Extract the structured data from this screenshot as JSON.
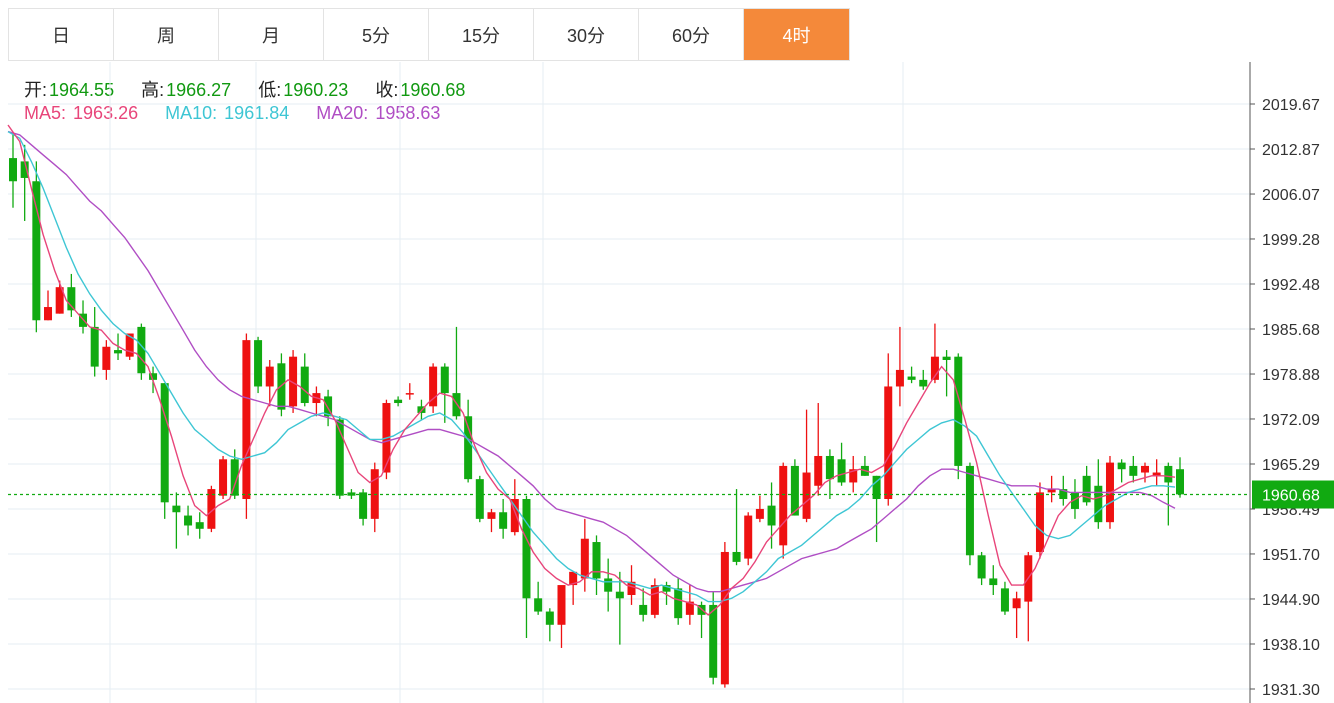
{
  "tabs": [
    {
      "label": "日",
      "active": false
    },
    {
      "label": "周",
      "active": false
    },
    {
      "label": "月",
      "active": false
    },
    {
      "label": "5分",
      "active": false
    },
    {
      "label": "15分",
      "active": false
    },
    {
      "label": "30分",
      "active": false
    },
    {
      "label": "60分",
      "active": false
    },
    {
      "label": "4时",
      "active": true
    }
  ],
  "info": {
    "open_label": "开:",
    "open_value": "1964.55",
    "high_label": "高:",
    "high_value": "1966.27",
    "low_label": "低:",
    "low_value": "1960.23",
    "close_label": "收:",
    "close_value": "1960.68",
    "ma5_label": "MA5:",
    "ma5_value": "1963.26",
    "ma10_label": "MA10:",
    "ma10_value": "1961.84",
    "ma20_label": "MA20:",
    "ma20_value": "1958.63"
  },
  "colors": {
    "up": "#ee1111",
    "down": "#11aa11",
    "ma5": "#e8457a",
    "ma10": "#3ec6d4",
    "ma20": "#b04ec4",
    "active_tab": "#f4893a",
    "price_line": "#11aa11",
    "label_green": "#119911"
  },
  "chart_data": {
    "type": "candlestick",
    "y_ticks": [
      "2019.67",
      "2012.87",
      "2006.07",
      "1999.28",
      "1992.48",
      "1985.68",
      "1978.88",
      "1972.09",
      "1965.29",
      "1958.49",
      "1951.70",
      "1944.90",
      "1938.10",
      "1931.30"
    ],
    "ylim": [
      1929.3,
      2023.0
    ],
    "current_price": "1960.68",
    "grid": true,
    "candles": [
      [
        2011.5,
        2015.3,
        2004.0,
        2008.0
      ],
      [
        2011.0,
        2013.5,
        2002.0,
        2008.5
      ],
      [
        2008.0,
        2011.0,
        1985.2,
        1987.0
      ],
      [
        1987.0,
        1991.5,
        1987.0,
        1989.0
      ],
      [
        1988.0,
        1993.0,
        1988.0,
        1992.0
      ],
      [
        1992.0,
        1994.0,
        1987.5,
        1988.5
      ],
      [
        1988.0,
        1990.0,
        1985.0,
        1986.0
      ],
      [
        1986.0,
        1989.0,
        1978.5,
        1980.0
      ],
      [
        1979.5,
        1984.0,
        1978.0,
        1983.0
      ],
      [
        1982.5,
        1985.0,
        1981.0,
        1982.0
      ],
      [
        1981.5,
        1985.0,
        1981.0,
        1985.0
      ],
      [
        1986.0,
        1986.5,
        1978.0,
        1979.0
      ],
      [
        1979.0,
        1980.0,
        1976.0,
        1978.0
      ],
      [
        1977.5,
        1977.5,
        1957.0,
        1959.5
      ],
      [
        1959.0,
        1961.0,
        1952.5,
        1958.0
      ],
      [
        1957.5,
        1959.0,
        1954.5,
        1956.0
      ],
      [
        1956.5,
        1958.0,
        1954.0,
        1955.5
      ],
      [
        1955.5,
        1962.0,
        1955.0,
        1961.5
      ],
      [
        1960.5,
        1966.5,
        1960.0,
        1966.0
      ],
      [
        1966.0,
        1967.5,
        1960.0,
        1960.5
      ],
      [
        1960.0,
        1985.0,
        1957.0,
        1984.0
      ],
      [
        1984.0,
        1984.5,
        1976.0,
        1977.0
      ],
      [
        1977.0,
        1981.0,
        1974.0,
        1980.0
      ],
      [
        1980.5,
        1982.0,
        1972.5,
        1973.5
      ],
      [
        1974.0,
        1982.5,
        1973.0,
        1981.5
      ],
      [
        1980.0,
        1982.0,
        1974.0,
        1974.5
      ],
      [
        1974.5,
        1977.0,
        1972.5,
        1976.0
      ],
      [
        1975.5,
        1976.5,
        1971.0,
        1972.5
      ],
      [
        1972.0,
        1972.5,
        1960.0,
        1960.5
      ],
      [
        1961.0,
        1961.5,
        1960.0,
        1960.5
      ],
      [
        1961.0,
        1961.5,
        1956.0,
        1957.0
      ],
      [
        1957.0,
        1965.5,
        1955.0,
        1964.5
      ],
      [
        1964.0,
        1975.0,
        1963.0,
        1974.5
      ],
      [
        1975.0,
        1975.5,
        1974.0,
        1974.5
      ],
      [
        1976.0,
        1977.5,
        1975.0,
        1976.0
      ],
      [
        1974.0,
        1975.0,
        1972.0,
        1973.0
      ],
      [
        1974.0,
        1980.5,
        1973.0,
        1980.0
      ],
      [
        1980.0,
        1980.5,
        1971.5,
        1976.0
      ],
      [
        1976.0,
        1986.0,
        1972.0,
        1972.5
      ],
      [
        1972.5,
        1975.0,
        1962.5,
        1963.0
      ],
      [
        1963.0,
        1963.5,
        1956.5,
        1957.0
      ],
      [
        1957.0,
        1958.5,
        1955.0,
        1958.0
      ],
      [
        1958.0,
        1960.0,
        1954.0,
        1955.5
      ],
      [
        1955.0,
        1963.0,
        1954.5,
        1960.0
      ],
      [
        1960.0,
        1960.5,
        1939.0,
        1945.0
      ],
      [
        1945.0,
        1947.5,
        1942.5,
        1943.0
      ],
      [
        1943.0,
        1943.5,
        1938.5,
        1941.0
      ],
      [
        1941.0,
        1946.5,
        1937.5,
        1947.0
      ],
      [
        1947.0,
        1949.0,
        1944.0,
        1949.0
      ],
      [
        1948.0,
        1957.0,
        1946.0,
        1954.0
      ],
      [
        1953.5,
        1954.5,
        1945.5,
        1948.0
      ],
      [
        1948.0,
        1951.0,
        1943.0,
        1946.0
      ],
      [
        1946.0,
        1949.0,
        1938.0,
        1945.0
      ],
      [
        1945.5,
        1950.0,
        1944.0,
        1947.5
      ],
      [
        1944.0,
        1946.5,
        1941.5,
        1942.5
      ],
      [
        1942.5,
        1948.0,
        1942.0,
        1947.0
      ],
      [
        1947.0,
        1947.5,
        1944.0,
        1946.0
      ],
      [
        1946.5,
        1948.0,
        1941.0,
        1942.0
      ],
      [
        1942.5,
        1947.0,
        1941.0,
        1944.5
      ],
      [
        1944.0,
        1944.5,
        1939.0,
        1942.5
      ],
      [
        1944.0,
        1946.0,
        1932.0,
        1933.0
      ],
      [
        1932.0,
        1953.5,
        1931.5,
        1952.0
      ],
      [
        1952.0,
        1961.5,
        1950.0,
        1950.5
      ],
      [
        1951.0,
        1958.0,
        1950.0,
        1957.5
      ],
      [
        1957.0,
        1960.5,
        1956.5,
        1958.5
      ],
      [
        1959.0,
        1962.5,
        1952.5,
        1956.0
      ],
      [
        1953.0,
        1965.5,
        1951.0,
        1965.0
      ],
      [
        1965.0,
        1966.0,
        1957.5,
        1957.5
      ],
      [
        1957.0,
        1973.5,
        1956.5,
        1964.0
      ],
      [
        1962.0,
        1974.5,
        1960.5,
        1966.5
      ],
      [
        1966.5,
        1967.5,
        1960.0,
        1963.0
      ],
      [
        1966.0,
        1968.5,
        1962.0,
        1962.5
      ],
      [
        1962.5,
        1966.5,
        1961.0,
        1964.5
      ],
      [
        1965.0,
        1966.5,
        1963.5,
        1963.5
      ],
      [
        1963.5,
        1963.5,
        1953.5,
        1960.0
      ],
      [
        1960.0,
        1982.0,
        1959.0,
        1977.0
      ],
      [
        1977.0,
        1986.0,
        1974.0,
        1979.5
      ],
      [
        1978.5,
        1980.0,
        1977.5,
        1978.0
      ],
      [
        1978.0,
        1979.5,
        1976.5,
        1977.0
      ],
      [
        1978.0,
        1986.5,
        1977.5,
        1981.5
      ],
      [
        1981.5,
        1982.5,
        1975.5,
        1981.0
      ],
      [
        1981.5,
        1982.0,
        1963.0,
        1965.0
      ],
      [
        1965.0,
        1965.5,
        1950.0,
        1951.5
      ],
      [
        1951.5,
        1952.0,
        1947.0,
        1948.0
      ],
      [
        1948.0,
        1950.0,
        1945.5,
        1947.0
      ],
      [
        1946.5,
        1947.5,
        1942.5,
        1943.0
      ],
      [
        1943.5,
        1946.0,
        1939.0,
        1945.0
      ],
      [
        1944.5,
        1952.0,
        1938.5,
        1951.5
      ],
      [
        1952.0,
        1962.5,
        1951.0,
        1961.0
      ],
      [
        1961.0,
        1963.5,
        1959.5,
        1961.5
      ],
      [
        1961.5,
        1963.5,
        1959.0,
        1960.0
      ],
      [
        1961.0,
        1963.0,
        1957.0,
        1958.5
      ],
      [
        1963.5,
        1965.0,
        1959.0,
        1959.5
      ],
      [
        1962.0,
        1966.0,
        1955.5,
        1956.5
      ],
      [
        1956.5,
        1966.5,
        1955.5,
        1965.5
      ],
      [
        1965.5,
        1966.0,
        1962.5,
        1964.5
      ],
      [
        1965.0,
        1966.5,
        1962.5,
        1963.5
      ],
      [
        1964.0,
        1965.5,
        1962.5,
        1965.0
      ],
      [
        1963.5,
        1966.0,
        1962.0,
        1964.0
      ],
      [
        1965.0,
        1965.5,
        1956.0,
        1962.5
      ],
      [
        1964.5,
        1966.3,
        1960.2,
        1960.7
      ]
    ],
    "ma5": [
      2016.5,
      2014.0,
      2007.0,
      2000.0,
      1994.5,
      1990.0,
      1988.0,
      1986.0,
      1985.5,
      1983.5,
      1982.5,
      1982.0,
      1980.0,
      1975.0,
      1969.5,
      1963.5,
      1959.0,
      1957.5,
      1959.0,
      1960.0,
      1965.0,
      1969.0,
      1973.0,
      1976.5,
      1978.0,
      1977.0,
      1975.5,
      1975.0,
      1972.0,
      1968.0,
      1964.0,
      1962.5,
      1963.5,
      1967.5,
      1970.5,
      1972.5,
      1974.5,
      1976.0,
      1975.5,
      1973.0,
      1968.0,
      1964.0,
      1961.5,
      1960.0,
      1955.5,
      1952.0,
      1949.5,
      1948.0,
      1947.0,
      1947.5,
      1949.0,
      1949.0,
      1948.5,
      1947.0,
      1946.5,
      1945.5,
      1946.0,
      1945.0,
      1944.5,
      1944.0,
      1942.5,
      1944.0,
      1946.5,
      1948.0,
      1950.5,
      1953.5,
      1955.5,
      1957.5,
      1959.0,
      1960.5,
      1962.5,
      1963.5,
      1964.0,
      1964.5,
      1964.0,
      1965.0,
      1968.0,
      1971.5,
      1974.5,
      1977.5,
      1980.0,
      1978.0,
      1972.0,
      1965.5,
      1957.5,
      1950.0,
      1947.0,
      1947.0,
      1949.5,
      1953.5,
      1957.5,
      1959.5,
      1960.5,
      1960.0,
      1960.5,
      1961.5,
      1962.5,
      1963.0,
      1963.5,
      1963.5,
      1963.3
    ],
    "ma10": [
      2015.5,
      2014.5,
      2011.0,
      2007.0,
      2002.5,
      1998.0,
      1994.0,
      1991.0,
      1988.5,
      1986.5,
      1985.0,
      1984.0,
      1982.0,
      1979.0,
      1976.0,
      1973.0,
      1970.5,
      1969.0,
      1967.5,
      1966.5,
      1966.0,
      1966.5,
      1967.0,
      1968.5,
      1970.5,
      1971.5,
      1972.5,
      1973.0,
      1972.5,
      1972.0,
      1970.5,
      1969.0,
      1969.0,
      1969.5,
      1970.5,
      1971.5,
      1972.5,
      1973.0,
      1972.0,
      1970.0,
      1967.5,
      1965.0,
      1962.5,
      1960.0,
      1957.5,
      1955.0,
      1953.0,
      1951.0,
      1949.5,
      1948.5,
      1948.0,
      1947.5,
      1947.5,
      1947.5,
      1947.0,
      1946.5,
      1947.0,
      1946.5,
      1946.0,
      1945.5,
      1944.5,
      1944.5,
      1945.0,
      1946.0,
      1947.5,
      1949.0,
      1951.0,
      1952.0,
      1953.0,
      1954.5,
      1956.0,
      1957.5,
      1958.5,
      1960.0,
      1962.0,
      1963.5,
      1965.5,
      1967.5,
      1969.0,
      1970.5,
      1971.5,
      1972.0,
      1971.0,
      1969.5,
      1966.5,
      1963.5,
      1961.0,
      1958.5,
      1956.0,
      1954.5,
      1954.0,
      1954.5,
      1956.0,
      1957.5,
      1959.0,
      1960.0,
      1961.0,
      1961.5,
      1962.0,
      1962.0,
      1961.8
    ],
    "ma20": [
      2015.5,
      2015.0,
      2013.5,
      2012.0,
      2010.5,
      2009.0,
      2007.0,
      2005.0,
      2003.5,
      2001.5,
      1999.5,
      1997.0,
      1994.5,
      1991.5,
      1988.5,
      1985.5,
      1982.5,
      1980.0,
      1978.0,
      1976.5,
      1975.5,
      1975.0,
      1974.5,
      1974.0,
      1974.0,
      1973.5,
      1973.0,
      1972.5,
      1972.0,
      1971.0,
      1970.0,
      1969.0,
      1968.5,
      1969.0,
      1969.5,
      1970.0,
      1970.5,
      1970.5,
      1970.0,
      1969.5,
      1968.5,
      1967.5,
      1966.5,
      1965.0,
      1963.5,
      1962.0,
      1960.0,
      1958.5,
      1958.0,
      1957.5,
      1957.0,
      1956.5,
      1955.5,
      1954.5,
      1953.0,
      1951.5,
      1950.0,
      1948.5,
      1947.5,
      1946.5,
      1946.0,
      1946.0,
      1946.5,
      1947.0,
      1947.5,
      1948.0,
      1949.0,
      1950.0,
      1951.0,
      1951.5,
      1952.0,
      1952.5,
      1953.5,
      1954.5,
      1955.5,
      1957.0,
      1958.5,
      1960.0,
      1962.0,
      1963.5,
      1964.5,
      1964.5,
      1964.0,
      1963.5,
      1963.0,
      1962.5,
      1962.0,
      1962.0,
      1962.0,
      1961.5,
      1961.5,
      1961.0,
      1961.0,
      1961.0,
      1961.0,
      1961.0,
      1961.0,
      1961.0,
      1960.5,
      1959.5,
      1958.6
    ]
  }
}
